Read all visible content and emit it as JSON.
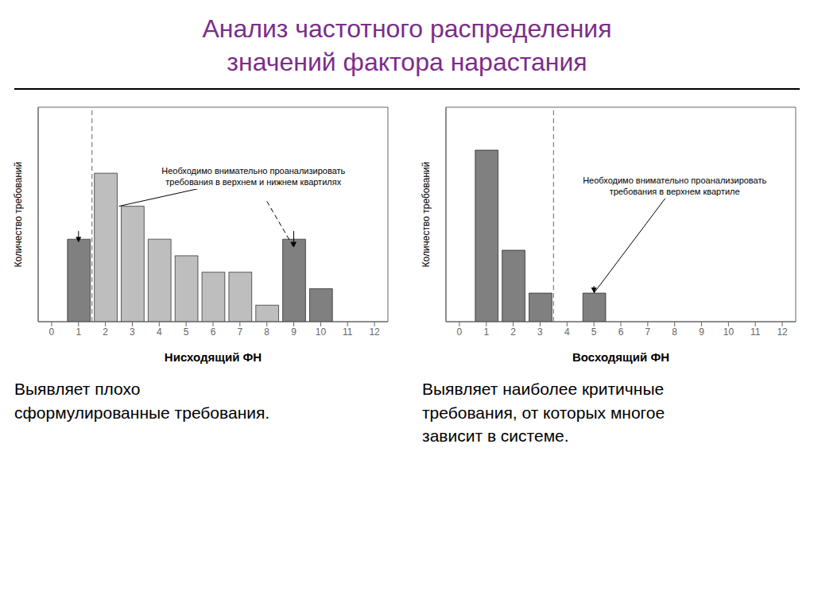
{
  "title": "Анализ частотного распределения\nзначений фактора нарастания",
  "color": "#7B2D8B",
  "chart_data": [
    {
      "type": "bar",
      "x": [
        0,
        1,
        2,
        3,
        4,
        5,
        6,
        7,
        8,
        9,
        10,
        11,
        12
      ],
      "values": [
        0,
        5,
        9,
        7,
        5,
        4,
        3,
        3,
        1,
        5,
        2,
        0,
        0
      ],
      "colors": [
        "#BEBEBE",
        "#808080",
        "#BEBEBE",
        "#BEBEBE",
        "#BEBEBE",
        "#BEBEBE",
        "#BEBEBE",
        "#BEBEBE",
        "#BEBEBE",
        "#808080",
        "#808080",
        "#BEBEBE",
        "#BEBEBE"
      ],
      "xlabel": "Нисходящий ФН",
      "ylabel": "Количество требований",
      "xlim": [
        -0.5,
        12.5
      ],
      "xticks": [
        0,
        1,
        2,
        3,
        4,
        5,
        6,
        7,
        8,
        9,
        10,
        11,
        12
      ],
      "ylim": [
        0,
        13
      ],
      "tick_labels": "x",
      "grid": false,
      "reference_lines": [
        {
          "x": 1.5,
          "line_style": "dashed",
          "color": "gray"
        }
      ],
      "annotations": [
        {
          "text": "Необходимо внимательно проанализировать\nтребования в верхнем и нижнем квартилях",
          "x": 7.5,
          "y": 8.8
        }
      ],
      "arrows": [
        {
          "x1": 7.5,
          "y1": 8.8,
          "x2": 2.5,
          "y2": 7.0,
          "line_style": "solid",
          "marker": "none"
        },
        {
          "x1": 8.0,
          "y1": 7.3,
          "x2": 9.0,
          "y2": 4.5,
          "line_style": "dashed",
          "marker": "none"
        },
        {
          "x1": 1.0,
          "y1": 5.5,
          "x2": 1.0,
          "y2": 4.8,
          "line_style": "solid",
          "marker": "arrow"
        },
        {
          "x1": 9.0,
          "y1": 5.5,
          "x2": 9.0,
          "y2": 4.5,
          "line_style": "solid",
          "marker": "arrow"
        }
      ],
      "description": "Выявляет плохо\nсформулированные требования."
    },
    {
      "type": "bar",
      "x": [
        0,
        1,
        2,
        3,
        4,
        5,
        6,
        7,
        8,
        9,
        10,
        11,
        12
      ],
      "values": [
        0,
        12,
        5,
        2,
        0,
        2,
        0,
        0,
        0,
        0,
        0,
        0,
        0
      ],
      "colors": [
        "#BEBEBE",
        "#808080",
        "#808080",
        "#808080",
        "#BEBEBE",
        "#808080",
        "#BEBEBE",
        "#BEBEBE",
        "#BEBEBE",
        "#BEBEBE",
        "#BEBEBE",
        "#BEBEBE",
        "#BEBEBE"
      ],
      "xlabel": "Восходящий ФН",
      "ylabel": "Количество требований",
      "xlim": [
        -0.5,
        12.5
      ],
      "xticks": [
        0,
        1,
        2,
        3,
        4,
        5,
        6,
        7,
        8,
        9,
        10,
        11,
        12
      ],
      "ylim": [
        0,
        15
      ],
      "tick_labels": "x",
      "grid": false,
      "reference_lines": [
        {
          "x": 3.5,
          "line_style": "dashed",
          "color": "gray"
        }
      ],
      "annotations": [
        {
          "text": "Необходимо внимательно проанализировать\nтребования в верхнем квартиле",
          "x": 8.0,
          "y": 9.5
        }
      ],
      "arrows": [
        {
          "x1": 8.0,
          "y1": 9.5,
          "x2": 5.0,
          "y2": 2.0,
          "line_style": "solid",
          "marker": "none"
        },
        {
          "x1": 5.0,
          "y1": 2.5,
          "x2": 5.0,
          "y2": 2.0,
          "line_style": "solid",
          "marker": "arrow"
        }
      ],
      "description": "Выявляет наиболее критичные\nтребования, от которых многое\nзависит в системе."
    }
  ]
}
